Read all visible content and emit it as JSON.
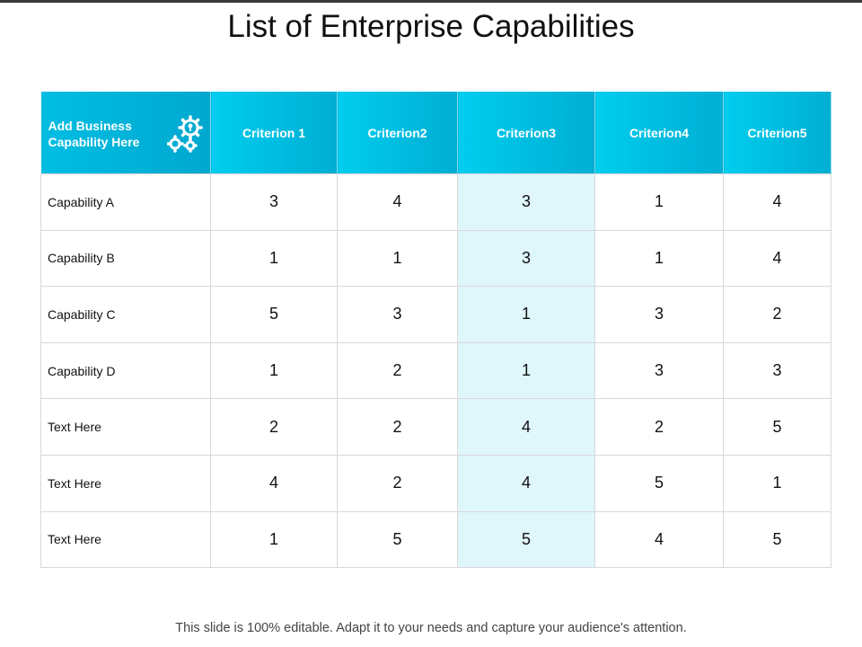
{
  "title": "List of Enterprise Capabilities",
  "table": {
    "header": [
      "Add Business Capability Here",
      "Criterion 1",
      "Criterion2",
      "Criterion3",
      "Criterion4",
      "Criterion5"
    ],
    "rows": [
      [
        "Capability A",
        3,
        4,
        3,
        1,
        4
      ],
      [
        "Capability B",
        1,
        1,
        3,
        1,
        4
      ],
      [
        "Capability C",
        5,
        3,
        1,
        3,
        2
      ],
      [
        "Capability D",
        1,
        2,
        1,
        3,
        3
      ],
      [
        "Text Here",
        2,
        2,
        4,
        2,
        5
      ],
      [
        "Text Here",
        4,
        2,
        4,
        5,
        1
      ],
      [
        "Text Here",
        1,
        5,
        5,
        4,
        5
      ]
    ]
  },
  "footer": "This slide is 100% editable. Adapt it to your needs and capture your audience's attention."
}
